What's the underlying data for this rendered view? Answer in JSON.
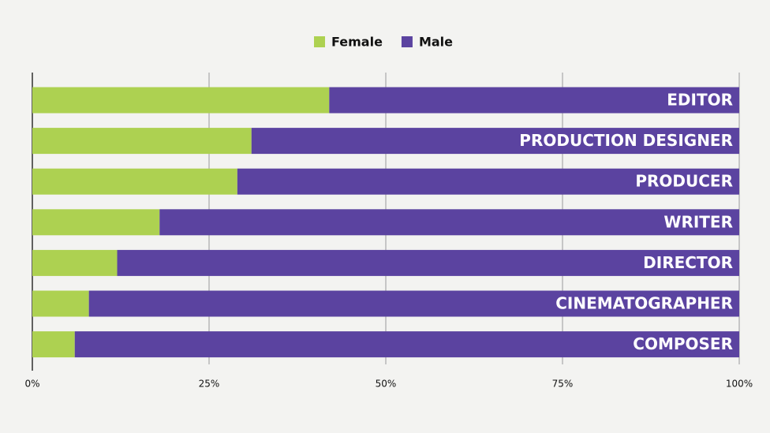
{
  "chart_data": {
    "type": "stacked-bar-horizontal",
    "categories": [
      "EDITOR",
      "PRODUCTION DESIGNER",
      "PRODUCER",
      "WRITER",
      "DIRECTOR",
      "CINEMATOGRAPHER",
      "COMPOSER"
    ],
    "series": [
      {
        "name": "Female",
        "color": "#add151",
        "values": [
          42,
          31,
          29,
          18,
          12,
          8,
          6
        ]
      },
      {
        "name": "Male",
        "color": "#5b43a0",
        "values": [
          58,
          69,
          71,
          82,
          88,
          92,
          94
        ]
      }
    ],
    "xlim": [
      0,
      100
    ],
    "xticks": [
      {
        "value": 0,
        "label": "0%"
      },
      {
        "value": 25,
        "label": "25%"
      },
      {
        "value": 50,
        "label": "50%"
      },
      {
        "value": 75,
        "label": "75%"
      },
      {
        "value": 100,
        "label": "100%"
      }
    ],
    "grid": true,
    "legend": "top"
  }
}
